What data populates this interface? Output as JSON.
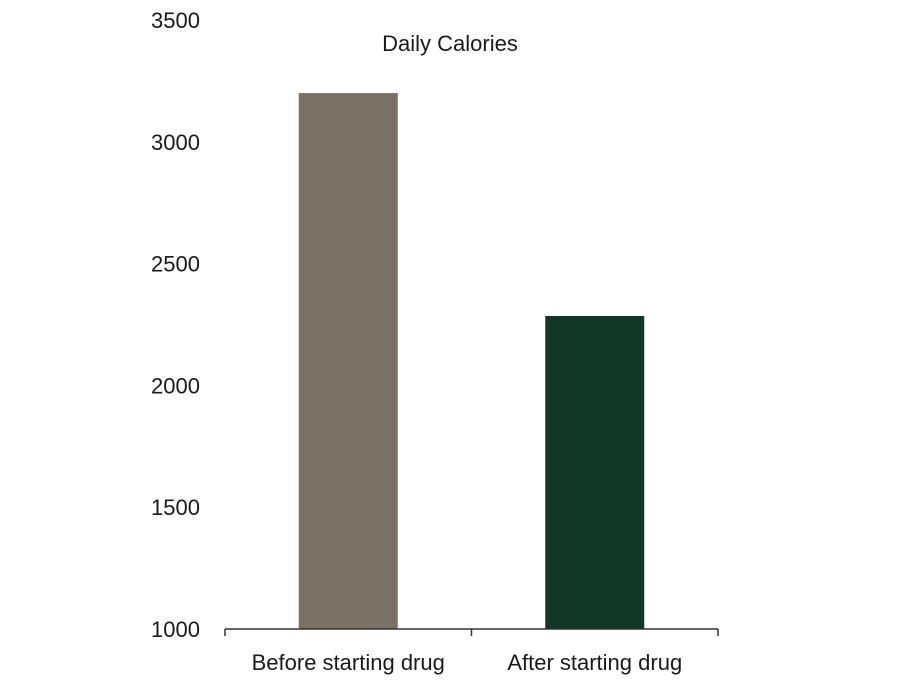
{
  "chart_data": {
    "type": "bar",
    "title": "Daily Calories",
    "xlabel": "",
    "ylabel": "",
    "categories": [
      "Before starting drug",
      "After starting drug"
    ],
    "values": [
      3200,
      2285
    ],
    "bar_colors": [
      "#7a7165",
      "#133726"
    ],
    "ylim": [
      1000,
      3500
    ],
    "yticks": [
      {
        "value": 1000,
        "label": "1000"
      },
      {
        "value": 1500,
        "label": "1500"
      },
      {
        "value": 2000,
        "label": "2000"
      },
      {
        "value": 2500,
        "label": "2500"
      },
      {
        "value": 3000,
        "label": "3000"
      },
      {
        "value": 3500,
        "label": "3500"
      }
    ],
    "grid": false,
    "legend": "none",
    "axis_color": "#333333"
  }
}
